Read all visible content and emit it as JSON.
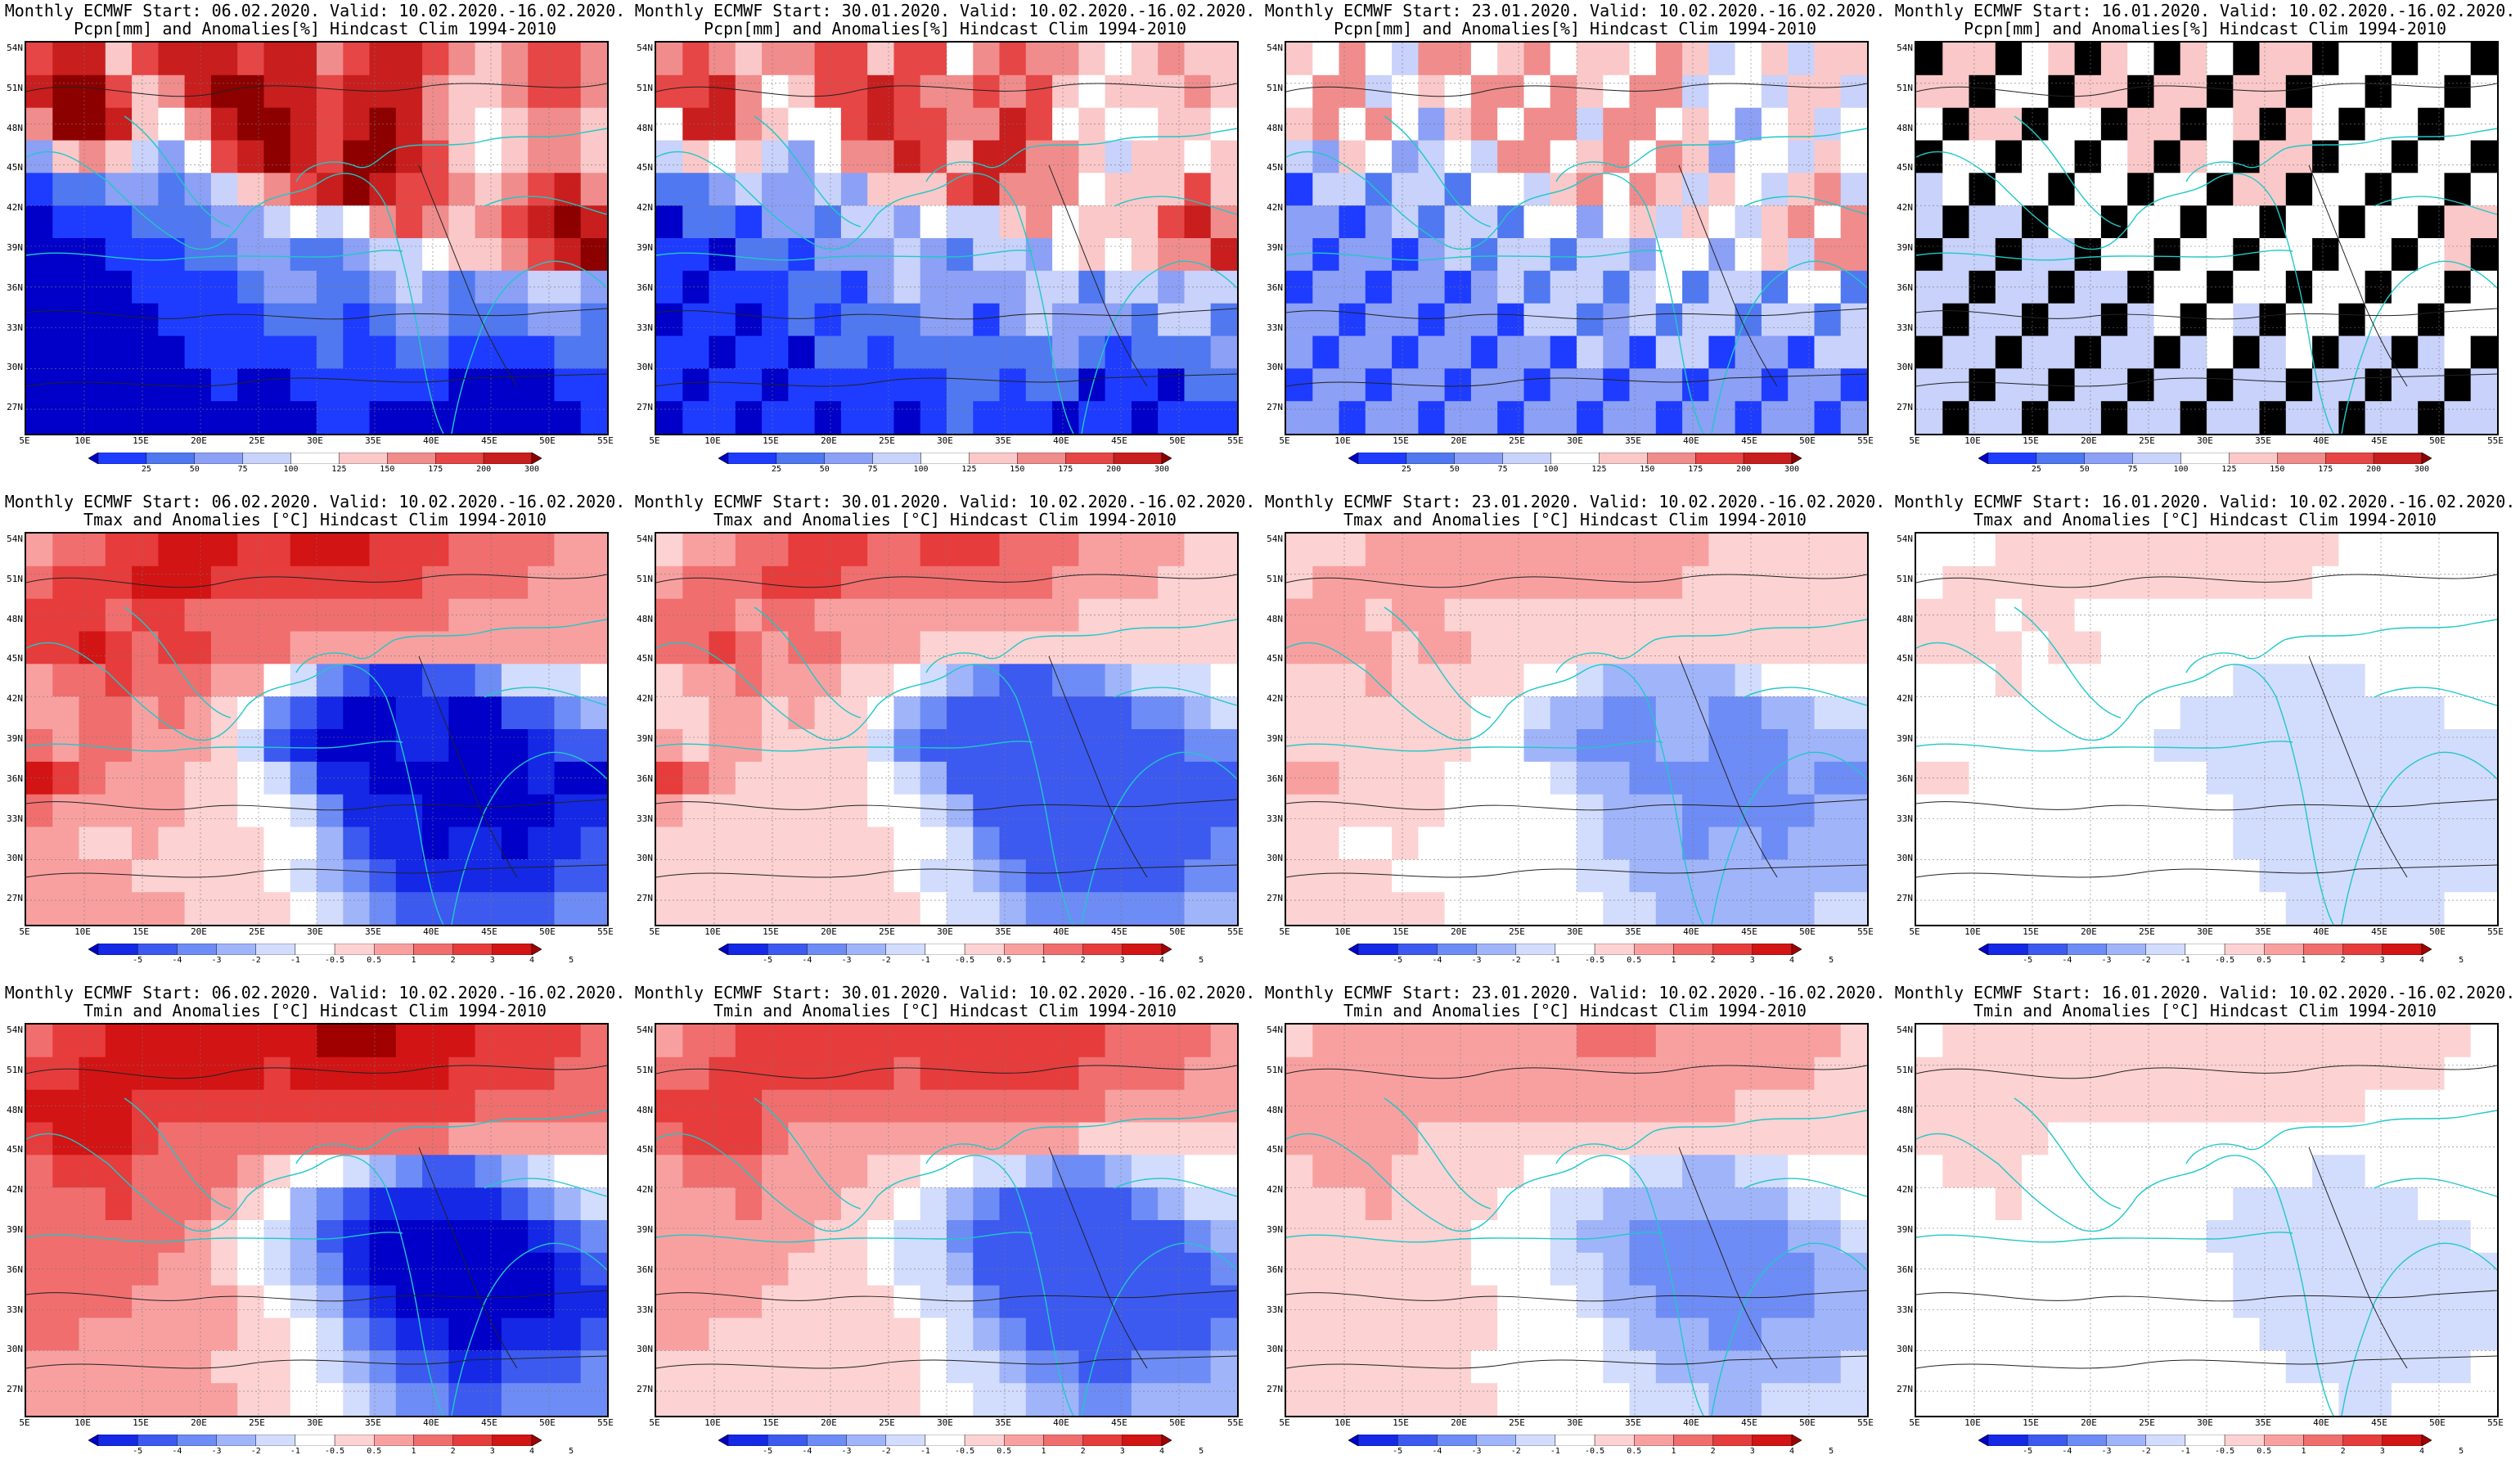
{
  "figure": {
    "rows": [
      {
        "row_name": "precip",
        "line2": "Pcpn[mm] and Anomalies[%] Hindcast Clim 1994-2010",
        "colorbar": {
          "ticks": [
            "25",
            "50",
            "75",
            "100",
            "125",
            "150",
            "175",
            "200",
            "300"
          ],
          "colors": [
            "#0000c8",
            "#1e3cff",
            "#5078f0",
            "#8ca0f5",
            "#c8d2fa",
            "#ffffff",
            "#fac8c8",
            "#f08c8c",
            "#e64646",
            "#c81e1e",
            "#8c0000"
          ]
        }
      },
      {
        "row_name": "tmax",
        "line2": "Tmax and Anomalies [°C] Hindcast Clim 1994-2010",
        "colorbar": {
          "ticks": [
            "-5",
            "-4",
            "-3",
            "-2",
            "-1",
            "-0.5",
            "0.5",
            "1",
            "2",
            "3",
            "4",
            "5"
          ],
          "colors": [
            "#0000c8",
            "#1428e6",
            "#3c5af0",
            "#6e8cf5",
            "#a0b4fa",
            "#d2dcfc",
            "#ffffff",
            "#fcd2d2",
            "#f8a0a0",
            "#f06e6e",
            "#e63c3c",
            "#d21414",
            "#a00000"
          ]
        }
      },
      {
        "row_name": "tmin",
        "line2": "Tmin and Anomalies [°C] Hindcast Clim 1994-2010",
        "colorbar": {
          "ticks": [
            "-5",
            "-4",
            "-3",
            "-2",
            "-1",
            "-0.5",
            "0.5",
            "1",
            "2",
            "3",
            "4",
            "5"
          ],
          "colors": [
            "#0000c8",
            "#1428e6",
            "#3c5af0",
            "#6e8cf5",
            "#a0b4fa",
            "#d2dcfc",
            "#ffffff",
            "#fcd2d2",
            "#f8a0a0",
            "#f06e6e",
            "#e63c3c",
            "#d21414",
            "#a00000"
          ]
        }
      }
    ],
    "columns": [
      {
        "line1": "Monthly ECMWF Start: 06.02.2020. Valid: 10.02.2020.-16.02.2020."
      },
      {
        "line1": "Monthly ECMWF Start: 30.01.2020. Valid: 10.02.2020.-16.02.2020."
      },
      {
        "line1": "Monthly ECMWF Start: 23.01.2020. Valid: 10.02.2020.-16.02.2020."
      },
      {
        "line1": "Monthly ECMWF Start: 16.01.2020. Valid: 10.02.2020.-16.02.2020."
      }
    ],
    "lat_labels": [
      "54N",
      "51N",
      "48N",
      "45N",
      "42N",
      "39N",
      "36N",
      "33N",
      "30N",
      "27N"
    ],
    "lon_labels": [
      "5E",
      "10E",
      "15E",
      "20E",
      "25E",
      "30E",
      "35E",
      "40E",
      "45E",
      "50E",
      "55E"
    ],
    "anomaly_field": {
      "note_levels": "indices into the colorbar colors array",
      "precip": [
        [
          8,
          9,
          9,
          6,
          8,
          9,
          9,
          9,
          8,
          9,
          9,
          7,
          8,
          9,
          9,
          8,
          7,
          6,
          7,
          8,
          8,
          7
        ],
        [
          9,
          10,
          10,
          8,
          6,
          7,
          9,
          10,
          10,
          9,
          9,
          8,
          9,
          9,
          9,
          7,
          6,
          6,
          7,
          8,
          8,
          7
        ],
        [
          7,
          10,
          10,
          9,
          6,
          5,
          7,
          9,
          10,
          10,
          9,
          8,
          9,
          10,
          9,
          7,
          6,
          5,
          6,
          7,
          7,
          6
        ],
        [
          3,
          6,
          7,
          6,
          4,
          3,
          5,
          8,
          9,
          10,
          9,
          8,
          10,
          10,
          9,
          8,
          6,
          5,
          6,
          7,
          7,
          6
        ],
        [
          1,
          2,
          2,
          3,
          3,
          2,
          3,
          4,
          6,
          7,
          8,
          9,
          10,
          9,
          8,
          8,
          7,
          6,
          7,
          8,
          9,
          7
        ],
        [
          0,
          1,
          1,
          1,
          2,
          2,
          2,
          3,
          3,
          4,
          5,
          4,
          5,
          7,
          8,
          7,
          6,
          7,
          8,
          9,
          10,
          9
        ],
        [
          0,
          0,
          0,
          1,
          1,
          1,
          2,
          2,
          3,
          3,
          2,
          2,
          3,
          4,
          4,
          5,
          6,
          6,
          7,
          8,
          9,
          10
        ],
        [
          0,
          0,
          0,
          0,
          1,
          1,
          1,
          1,
          2,
          3,
          3,
          2,
          2,
          3,
          4,
          3,
          2,
          3,
          3,
          4,
          4,
          3
        ],
        [
          0,
          0,
          0,
          0,
          0,
          1,
          1,
          1,
          1,
          2,
          2,
          2,
          1,
          2,
          3,
          3,
          2,
          2,
          2,
          3,
          3,
          2
        ],
        [
          0,
          0,
          0,
          0,
          0,
          0,
          1,
          1,
          1,
          1,
          1,
          2,
          1,
          1,
          2,
          2,
          1,
          1,
          1,
          1,
          2,
          2
        ],
        [
          0,
          0,
          0,
          0,
          0,
          0,
          0,
          1,
          0,
          0,
          1,
          1,
          1,
          1,
          1,
          1,
          0,
          0,
          0,
          0,
          1,
          1
        ],
        [
          0,
          0,
          0,
          0,
          0,
          0,
          0,
          0,
          0,
          0,
          0,
          1,
          1,
          0,
          0,
          0,
          0,
          0,
          0,
          0,
          0,
          1
        ]
      ],
      "tmax": [
        [
          8,
          9,
          9,
          10,
          10,
          11,
          11,
          11,
          10,
          10,
          11,
          11,
          11,
          10,
          10,
          10,
          9,
          9,
          9,
          9,
          8,
          8
        ],
        [
          9,
          10,
          10,
          10,
          11,
          11,
          11,
          10,
          10,
          10,
          10,
          10,
          10,
          10,
          10,
          9,
          9,
          9,
          9,
          8,
          8,
          8
        ],
        [
          10,
          10,
          10,
          9,
          10,
          10,
          9,
          9,
          9,
          9,
          9,
          9,
          9,
          9,
          9,
          9,
          8,
          8,
          8,
          8,
          8,
          8
        ],
        [
          10,
          10,
          11,
          10,
          9,
          10,
          10,
          9,
          9,
          9,
          8,
          8,
          8,
          8,
          8,
          8,
          8,
          8,
          8,
          8,
          8,
          8
        ],
        [
          8,
          9,
          9,
          10,
          9,
          9,
          9,
          8,
          8,
          6,
          5,
          3,
          2,
          1,
          1,
          2,
          2,
          3,
          5,
          5,
          5,
          6
        ],
        [
          8,
          8,
          9,
          9,
          8,
          9,
          8,
          7,
          6,
          3,
          2,
          1,
          0,
          0,
          1,
          1,
          0,
          0,
          2,
          2,
          3,
          4
        ],
        [
          9,
          8,
          9,
          9,
          8,
          8,
          8,
          7,
          5,
          2,
          1,
          0,
          0,
          0,
          1,
          1,
          0,
          0,
          0,
          1,
          2,
          2
        ],
        [
          11,
          10,
          9,
          8,
          8,
          8,
          7,
          7,
          6,
          5,
          3,
          1,
          1,
          0,
          0,
          0,
          0,
          0,
          0,
          1,
          0,
          0
        ],
        [
          9,
          8,
          8,
          8,
          8,
          8,
          7,
          7,
          6,
          6,
          5,
          3,
          1,
          1,
          1,
          0,
          0,
          0,
          0,
          0,
          1,
          1
        ],
        [
          8,
          8,
          7,
          7,
          8,
          7,
          7,
          7,
          7,
          6,
          6,
          4,
          2,
          1,
          1,
          0,
          1,
          1,
          0,
          1,
          1,
          2
        ],
        [
          8,
          8,
          8,
          8,
          7,
          7,
          7,
          7,
          7,
          6,
          5,
          4,
          3,
          2,
          1,
          1,
          1,
          1,
          1,
          1,
          2,
          2
        ],
        [
          8,
          8,
          8,
          8,
          8,
          8,
          7,
          7,
          7,
          7,
          6,
          5,
          4,
          3,
          2,
          2,
          2,
          2,
          2,
          2,
          3,
          3
        ]
      ],
      "tmin": [
        [
          9,
          10,
          10,
          11,
          11,
          11,
          11,
          11,
          11,
          11,
          11,
          12,
          12,
          12,
          11,
          11,
          11,
          10,
          10,
          10,
          10,
          9
        ],
        [
          10,
          10,
          11,
          11,
          11,
          11,
          11,
          11,
          11,
          10,
          11,
          11,
          11,
          11,
          11,
          11,
          10,
          10,
          10,
          10,
          9,
          9
        ],
        [
          11,
          11,
          11,
          11,
          10,
          10,
          10,
          10,
          10,
          10,
          10,
          10,
          10,
          10,
          10,
          10,
          10,
          9,
          9,
          9,
          9,
          9
        ],
        [
          10,
          11,
          11,
          11,
          10,
          9,
          9,
          9,
          9,
          9,
          9,
          9,
          9,
          9,
          9,
          9,
          8,
          8,
          8,
          8,
          8,
          8
        ],
        [
          9,
          10,
          10,
          10,
          9,
          9,
          9,
          9,
          8,
          7,
          6,
          6,
          5,
          4,
          3,
          2,
          2,
          3,
          4,
          5,
          6,
          6
        ],
        [
          9,
          9,
          9,
          10,
          9,
          9,
          9,
          8,
          7,
          6,
          4,
          3,
          2,
          1,
          1,
          1,
          1,
          1,
          2,
          3,
          4,
          5
        ],
        [
          9,
          9,
          9,
          9,
          9,
          9,
          8,
          7,
          6,
          5,
          4,
          2,
          1,
          0,
          0,
          0,
          0,
          0,
          0,
          1,
          2,
          3
        ],
        [
          9,
          9,
          9,
          9,
          9,
          8,
          8,
          7,
          6,
          5,
          4,
          3,
          1,
          0,
          0,
          0,
          0,
          0,
          0,
          0,
          1,
          2
        ],
        [
          9,
          9,
          9,
          9,
          8,
          8,
          8,
          8,
          7,
          6,
          5,
          4,
          2,
          1,
          0,
          0,
          0,
          0,
          0,
          0,
          1,
          1
        ],
        [
          9,
          9,
          8,
          8,
          8,
          8,
          8,
          8,
          7,
          7,
          6,
          5,
          3,
          2,
          1,
          1,
          0,
          0,
          1,
          1,
          1,
          2
        ],
        [
          8,
          8,
          8,
          8,
          8,
          8,
          8,
          7,
          7,
          7,
          6,
          5,
          4,
          3,
          2,
          2,
          1,
          1,
          2,
          2,
          2,
          3
        ],
        [
          8,
          8,
          8,
          8,
          8,
          8,
          8,
          8,
          7,
          7,
          6,
          6,
          5,
          4,
          3,
          3,
          2,
          2,
          3,
          3,
          3,
          3
        ]
      ],
      "column_shift_precip": [
        0,
        -2,
        -4,
        -3
      ],
      "column_shift_tmax": [
        0,
        1,
        2,
        3
      ],
      "column_shift_tmin": [
        0,
        1,
        2,
        3
      ]
    }
  }
}
